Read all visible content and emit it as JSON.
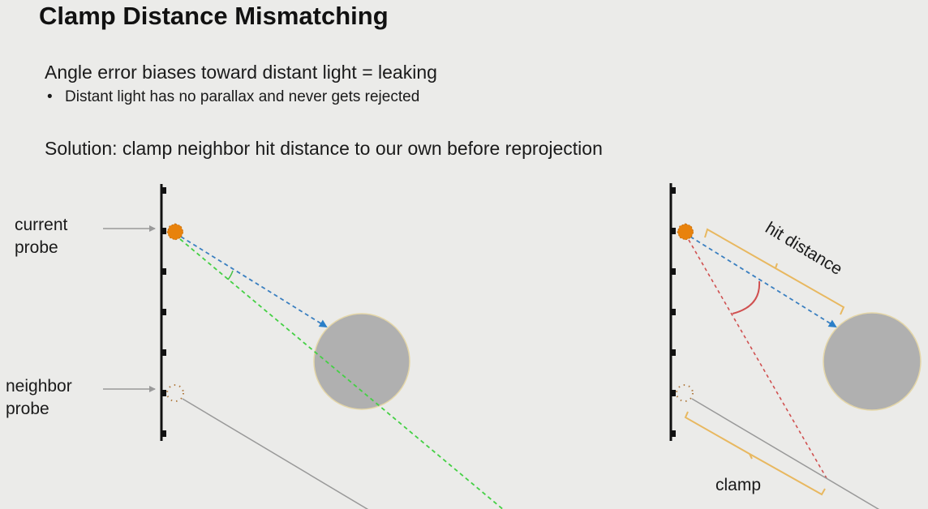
{
  "slide": {
    "title": "Clamp Distance Mismatching",
    "point": "Angle error biases toward distant light = leaking",
    "bullet": "Distant light has no parallax and never gets rejected",
    "solution": "Solution: clamp neighbor hit distance to our own before reprojection"
  },
  "diagram_left": {
    "label_current": [
      "current",
      "probe"
    ],
    "label_neighbor": [
      "neighbor",
      "probe"
    ]
  },
  "diagram_right": {
    "label_hit_distance": "hit distance",
    "label_clamp": "clamp"
  },
  "colors": {
    "probe": "#e8820c",
    "ray_blue": "#2a7fc8",
    "ray_green": "#44d044",
    "ray_red": "#d05050",
    "bracket": "#e8b860",
    "occluder": "#b0b0b0"
  }
}
